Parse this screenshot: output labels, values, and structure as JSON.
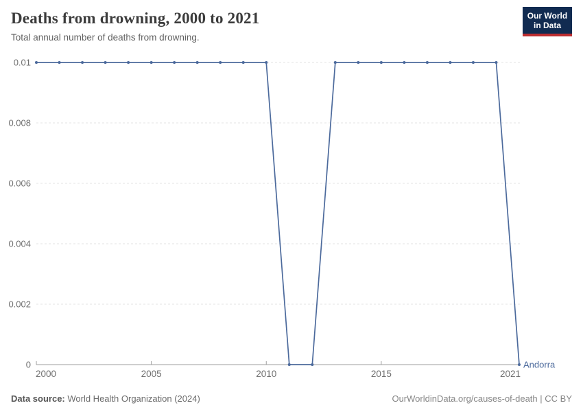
{
  "header": {
    "title": "Deaths from drowning, 2000 to 2021",
    "subtitle": "Total annual number of deaths from drowning."
  },
  "logo": {
    "line1": "Our World",
    "line2": "in Data"
  },
  "chart_data": {
    "type": "line",
    "title": "Deaths from drowning, 2000 to 2021",
    "xlabel": "",
    "ylabel": "",
    "x": [
      2000,
      2001,
      2002,
      2003,
      2004,
      2005,
      2006,
      2007,
      2008,
      2009,
      2010,
      2011,
      2012,
      2013,
      2014,
      2015,
      2016,
      2017,
      2018,
      2019,
      2020,
      2021
    ],
    "series": [
      {
        "name": "Andorra",
        "values": [
          0.01,
          0.01,
          0.01,
          0.01,
          0.01,
          0.01,
          0.01,
          0.01,
          0.01,
          0.01,
          0.01,
          0,
          0,
          0.01,
          0.01,
          0.01,
          0.01,
          0.01,
          0.01,
          0.01,
          0.01,
          0
        ]
      }
    ],
    "xlim": [
      2000,
      2021
    ],
    "ylim": [
      0,
      0.01
    ],
    "yticks": [
      0,
      0.002,
      0.004,
      0.006,
      0.008,
      0.01
    ],
    "ytick_labels": [
      "0",
      "0.002",
      "0.004",
      "0.006",
      "0.008",
      "0.01"
    ],
    "xticks": [
      2000,
      2005,
      2010,
      2015,
      2021
    ],
    "xtick_labels": [
      "2000",
      "2005",
      "2010",
      "2015",
      "2021"
    ],
    "grid": "horizontal dashed",
    "legend": "end-of-line entity label",
    "entity_label": "Andorra"
  },
  "footer": {
    "datasource_label": "Data source:",
    "datasource_value": " World Health Organization (2024)",
    "credit_link": "OurWorldinData.org/causes-of-death",
    "credit_separator": " | ",
    "credit_license": "CC BY"
  },
  "colors": {
    "line": "#4c6a9c",
    "entity_label": "#4c6a9c",
    "grid": "#e3e3e3",
    "axis": "#9e9e9e",
    "tick_label": "#6e6e6e"
  }
}
